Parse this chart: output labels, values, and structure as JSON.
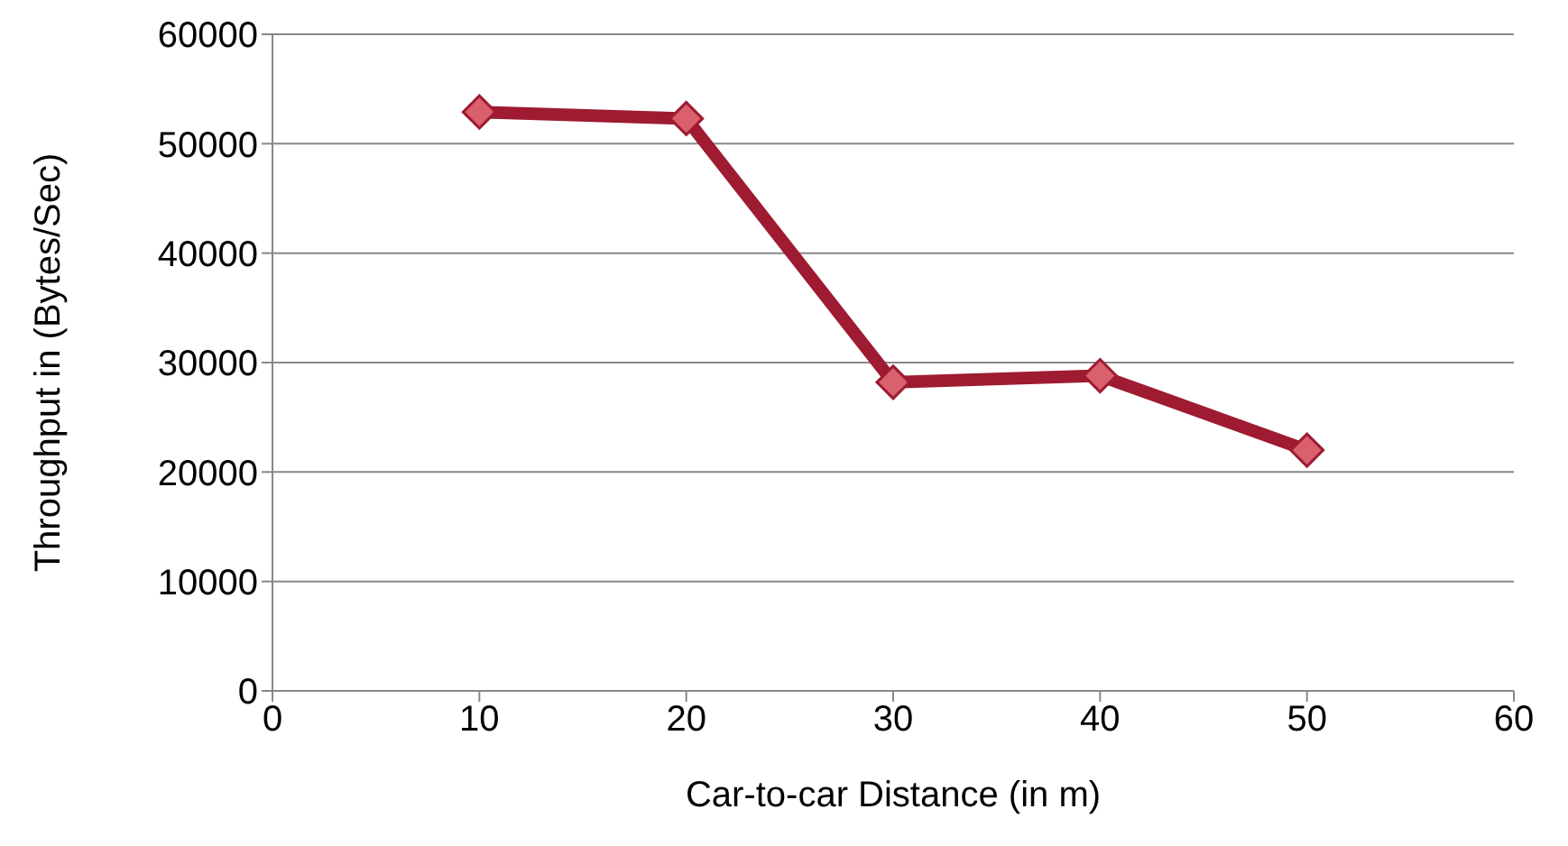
{
  "chart_data": {
    "type": "line",
    "xlabel": "Car-to-car Distance (in m)",
    "ylabel": "Throughput in (Bytes/Sec)",
    "x": [
      10,
      20,
      30,
      40,
      50
    ],
    "series": [
      {
        "color": "#9e1b32",
        "values": [
          52900,
          52300,
          28200,
          28800,
          22000
        ]
      }
    ],
    "xlim": [
      0,
      60
    ],
    "xticks": [
      0,
      10,
      20,
      30,
      40,
      50,
      60
    ],
    "ylim": [
      0,
      60000
    ],
    "yticks": [
      0,
      10000,
      20000,
      30000,
      40000,
      50000,
      60000
    ],
    "grid": "y",
    "legend": false,
    "marker": "diamond",
    "line_style": "solid"
  }
}
